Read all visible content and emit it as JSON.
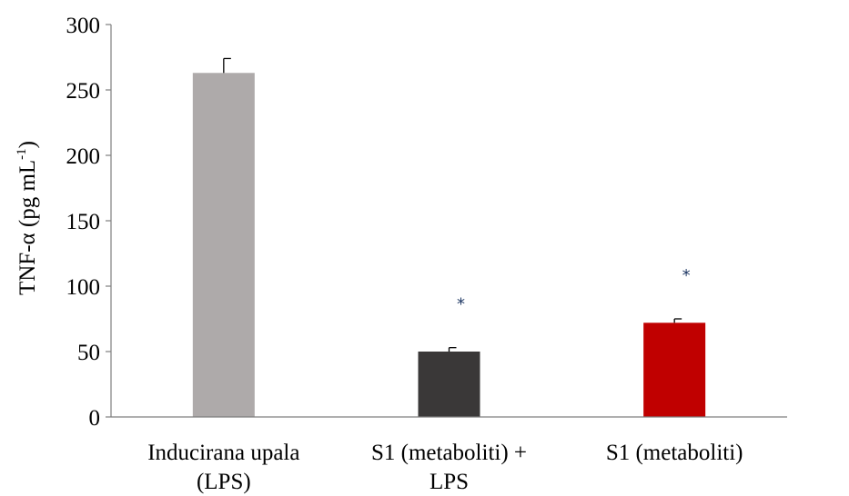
{
  "chart_data": {
    "type": "bar",
    "title": "",
    "ylabel_main": "TNF-α (pg mL",
    "ylabel_sup": "-1",
    "ylabel_close": ")",
    "ylim": [
      0,
      300
    ],
    "yticks": [
      "0",
      "50",
      "100",
      "150",
      "200",
      "250",
      "300"
    ],
    "categories": [
      {
        "lines": [
          "Inducirana upala",
          "(LPS)"
        ],
        "value": 263,
        "error": 11,
        "color": "#aeaaaa",
        "significant": false
      },
      {
        "lines": [
          "S1 (metaboliti) +",
          "LPS"
        ],
        "value": 50,
        "error": 3,
        "color": "#3a3838",
        "significant": true
      },
      {
        "lines": [
          "S1 (metaboliti)"
        ],
        "value": 72,
        "error": 3,
        "color": "#c00000",
        "significant": true
      }
    ],
    "significance_marker": "*",
    "grid": false,
    "legend": "none"
  }
}
